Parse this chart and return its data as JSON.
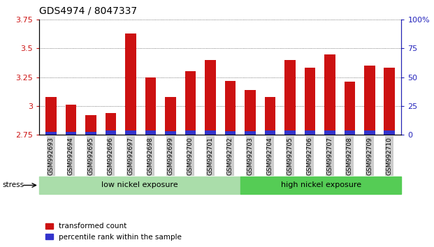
{
  "title": "GDS4974 / 8047337",
  "samples": [
    "GSM992693",
    "GSM992694",
    "GSM992695",
    "GSM992696",
    "GSM992697",
    "GSM992698",
    "GSM992699",
    "GSM992700",
    "GSM992701",
    "GSM992702",
    "GSM992703",
    "GSM992704",
    "GSM992705",
    "GSM992706",
    "GSM992707",
    "GSM992708",
    "GSM992709",
    "GSM992710"
  ],
  "red_values": [
    3.08,
    3.01,
    2.92,
    2.94,
    3.63,
    3.25,
    3.08,
    3.3,
    3.4,
    3.22,
    3.14,
    3.08,
    3.4,
    3.33,
    3.45,
    3.21,
    3.35,
    3.33
  ],
  "blue_values": [
    0.025,
    0.025,
    0.025,
    0.035,
    0.035,
    0.035,
    0.03,
    0.035,
    0.035,
    0.03,
    0.03,
    0.035,
    0.035,
    0.035,
    0.035,
    0.035,
    0.035,
    0.035
  ],
  "baseline": 2.75,
  "ylim_left": [
    2.75,
    3.75
  ],
  "yticks_left": [
    2.75,
    3.0,
    3.25,
    3.5,
    3.75
  ],
  "ytick_labels_left": [
    "2.75",
    "3",
    "3.25",
    "3.5",
    "3.75"
  ],
  "yticks_right": [
    0,
    25,
    50,
    75,
    100
  ],
  "ytick_labels_right": [
    "0",
    "25",
    "50",
    "75",
    "100%"
  ],
  "red_color": "#cc1111",
  "blue_color": "#3333cc",
  "bar_width": 0.55,
  "group1_label": "low nickel exposure",
  "group2_label": "high nickel exposure",
  "group1_count": 10,
  "group2_count": 8,
  "group1_color": "#aaddaa",
  "group2_color": "#55cc55",
  "stress_label": "stress",
  "legend1": "transformed count",
  "legend2": "percentile rank within the sample",
  "axis_color_left": "#cc1111",
  "axis_color_right": "#2222bb",
  "tick_label_bg": "#cccccc",
  "dotted_grid_color": "#555555"
}
